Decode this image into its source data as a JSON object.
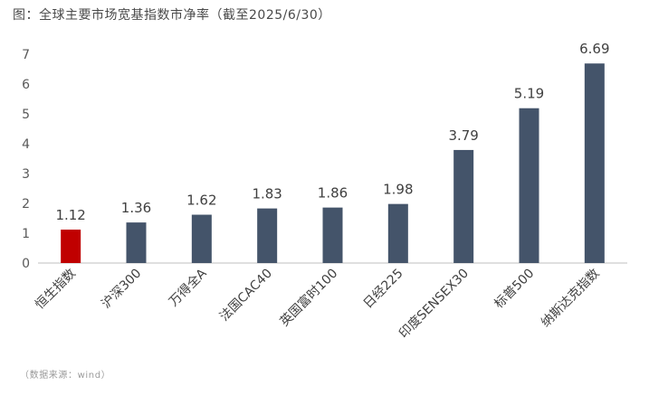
{
  "title": "图：全球主要市场宽基指数市净率（截至2025/6/30）",
  "source": "（数据来源：wind）",
  "chart_data": {
    "type": "bar",
    "categories": [
      "恒生指数",
      "沪深300",
      "万得全A",
      "法国CAC40",
      "英国富时100",
      "日经225",
      "印度SENSEX30",
      "标普500",
      "纳斯达克指数"
    ],
    "values": [
      1.12,
      1.36,
      1.62,
      1.83,
      1.86,
      1.98,
      3.79,
      5.19,
      6.69
    ],
    "value_labels": [
      "1.12",
      "1.36",
      "1.62",
      "1.83",
      "1.86",
      "1.98",
      "3.79",
      "5.19",
      "6.69"
    ],
    "y_ticks": [
      "0",
      "1",
      "2",
      "3",
      "4",
      "5",
      "6",
      "7"
    ],
    "ylim": [
      0,
      7
    ],
    "grid": false,
    "colors": {
      "highlight": "#c00000",
      "default": "#44546a",
      "axis": "#bfbfbf",
      "label_text": "#404040",
      "tick_text": "#595959"
    },
    "highlight_index": 0
  }
}
